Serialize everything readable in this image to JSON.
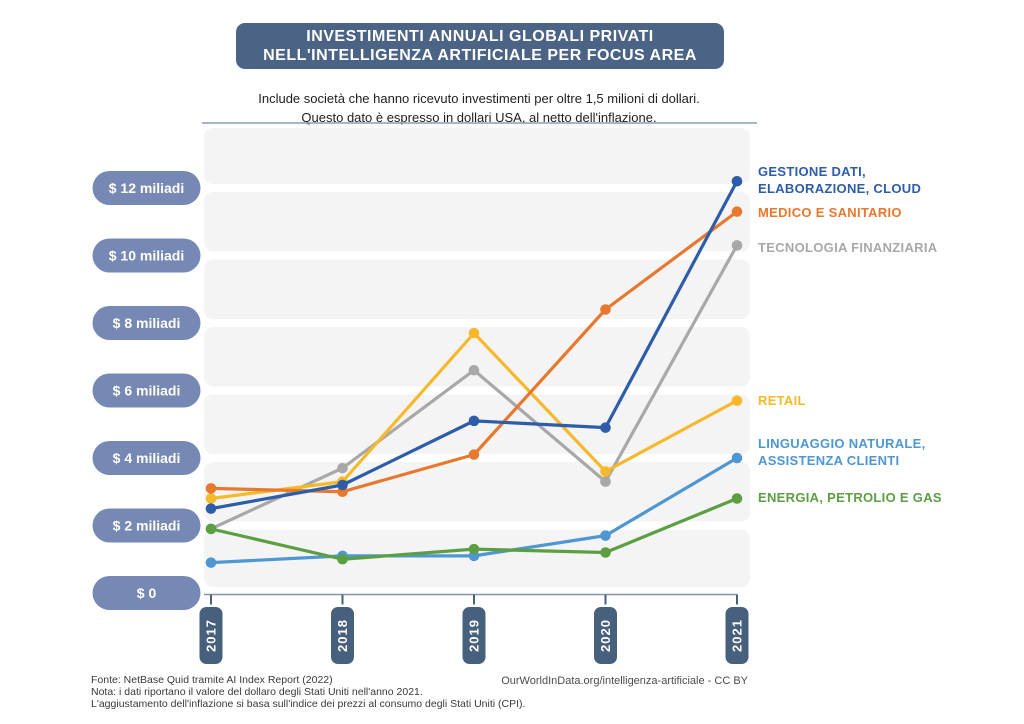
{
  "title": {
    "line1": "INVESTIMENTI ANNUALI GLOBALI PRIVATI",
    "line2": "NELL'INTELLIGENZA ARTIFICIALE PER FOCUS AREA"
  },
  "subtitle": {
    "line1": "Include società che hanno ricevuto investimenti per oltre 1,5 milioni di dollari.",
    "line2": "Questo dato è espresso in dollari USA, al netto dell'inflazione."
  },
  "footer": {
    "source": "Fonte: NetBase Quid tramite AI Index Report (2022)",
    "note1": "Nota: i dati riportano il valore del dollaro degli Stati Uniti nell'anno 2021.",
    "note2": "L'aggiustamento dell'inflazione si basa sull'indice dei prezzi al consumo degli Stati Uniti (CPI).",
    "credit": "OurWorldInData.org/intelligenza-artificiale - CC BY"
  },
  "colors": {
    "title_box": "#4b6384",
    "y_pill": "#7689b4",
    "year_pill": "#46607e",
    "band": "#f4f4f5",
    "top_rule": "#8b9cb6",
    "axis": "#8195ad",
    "tick": "#46607e"
  },
  "chart_data": {
    "type": "line",
    "x_labels": [
      "2017",
      "2018",
      "2019",
      "2020",
      "2021"
    ],
    "y_ticks": [
      {
        "value": 12,
        "label": "$ 12 miliadi"
      },
      {
        "value": 10,
        "label": "$ 10 miliadi"
      },
      {
        "value": 8,
        "label": "$ 8 miliadi"
      },
      {
        "value": 6,
        "label": "$ 6 miliadi"
      },
      {
        "value": 4,
        "label": "$ 4 miliadi"
      },
      {
        "value": 2,
        "label": "$ 2  miliadi"
      },
      {
        "value": 0,
        "label": "$ 0"
      }
    ],
    "ylim": [
      0,
      14
    ],
    "grid": "horizontal-bands",
    "legend_position": "right",
    "series": [
      {
        "id": "gestione-dati",
        "lines": [
          "GESTIONE DATI,",
          "ELABORAZIONE, CLOUD"
        ],
        "color": "#2d5da9",
        "values": [
          2.5,
          3.2,
          5.1,
          4.9,
          12.2
        ]
      },
      {
        "id": "medico-sanitario",
        "lines": [
          "MEDICO E SANITARIO"
        ],
        "color": "#e8782d",
        "values": [
          3.1,
          3.0,
          4.1,
          8.4,
          11.3
        ]
      },
      {
        "id": "tecnologia-finanziaria",
        "lines": [
          "TECNOLOGIA FINANZIARIA"
        ],
        "color": "#a8a8a8",
        "values": [
          1.9,
          3.7,
          6.6,
          3.3,
          10.3
        ]
      },
      {
        "id": "retail",
        "lines": [
          "RETAIL"
        ],
        "color": "#f5b92b",
        "values": [
          2.8,
          3.3,
          7.7,
          3.6,
          5.7
        ]
      },
      {
        "id": "linguaggio-naturale",
        "lines": [
          "LINGUAGGIO NATURALE,",
          "ASSISTENZA CLIENTI"
        ],
        "color": "#4e97d3",
        "values": [
          0.9,
          1.1,
          1.1,
          1.7,
          4.0
        ]
      },
      {
        "id": "energia-petrolio-gas",
        "lines": [
          "ENERGIA, PETROLIO E GAS"
        ],
        "color": "#5c9f43",
        "values": [
          1.9,
          1.0,
          1.3,
          1.2,
          2.8
        ]
      }
    ]
  }
}
